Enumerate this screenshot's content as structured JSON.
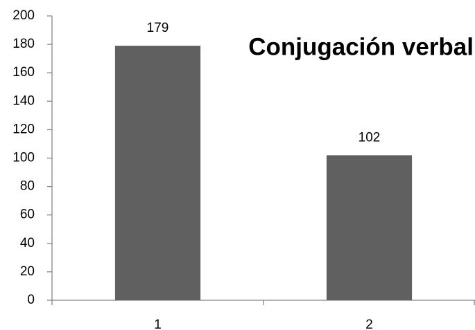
{
  "chart_data": {
    "type": "bar",
    "title": "Conjugación verbal",
    "categories": [
      "1",
      "2"
    ],
    "values": [
      179,
      102
    ],
    "color": "#606060",
    "ylim": [
      0,
      200
    ],
    "yticks": [
      0,
      20,
      40,
      60,
      80,
      100,
      120,
      140,
      160,
      180,
      200
    ]
  }
}
